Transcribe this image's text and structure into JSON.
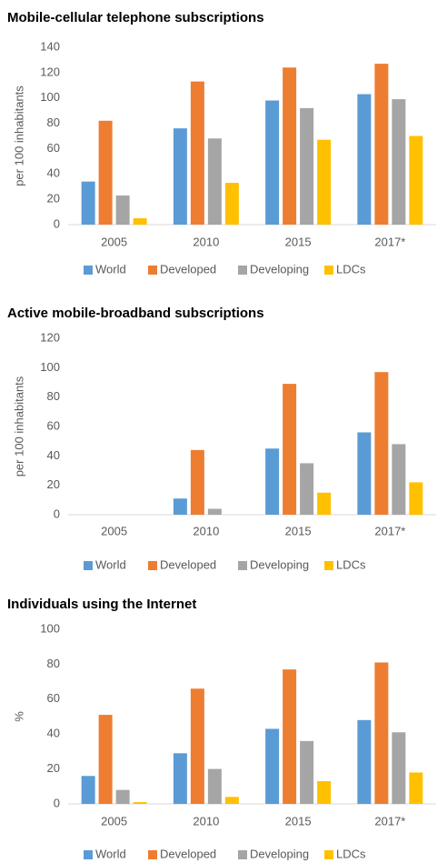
{
  "chart_data": [
    {
      "type": "bar",
      "title": "Mobile-cellular telephone subscriptions",
      "y_label": "per 100 inhabitants",
      "categories": [
        "2005",
        "2010",
        "2015",
        "2017*"
      ],
      "series": [
        {
          "name": "World",
          "color": "#5b9bd5",
          "values": [
            34,
            76,
            98,
            103
          ]
        },
        {
          "name": "Developed",
          "color": "#ed7d31",
          "values": [
            82,
            113,
            124,
            127
          ]
        },
        {
          "name": "Developing",
          "color": "#a5a5a5",
          "values": [
            23,
            68,
            92,
            99
          ]
        },
        {
          "name": "LDCs",
          "color": "#ffc000",
          "values": [
            5,
            33,
            67,
            70
          ]
        }
      ],
      "ylim": [
        0,
        140
      ],
      "yticks": [
        0,
        20,
        40,
        60,
        80,
        100,
        120,
        140
      ],
      "grid": false,
      "legend": "bottom"
    },
    {
      "type": "bar",
      "title": "Active mobile-broadband subscriptions",
      "y_label": "per 100 inhabitants",
      "categories": [
        "2005",
        "2010",
        "2015",
        "2017*"
      ],
      "series": [
        {
          "name": "World",
          "color": "#5b9bd5",
          "values": [
            null,
            11,
            45,
            56
          ]
        },
        {
          "name": "Developed",
          "color": "#ed7d31",
          "values": [
            null,
            44,
            89,
            97
          ]
        },
        {
          "name": "Developing",
          "color": "#a5a5a5",
          "values": [
            null,
            4,
            35,
            48
          ]
        },
        {
          "name": "LDCs",
          "color": "#ffc000",
          "values": [
            null,
            null,
            15,
            22
          ]
        }
      ],
      "ylim": [
        0,
        120
      ],
      "yticks": [
        0,
        20,
        40,
        60,
        80,
        100,
        120
      ],
      "grid": false,
      "legend": "bottom"
    },
    {
      "type": "bar",
      "title": "Individuals using the Internet",
      "y_label": "%",
      "categories": [
        "2005",
        "2010",
        "2015",
        "2017*"
      ],
      "series": [
        {
          "name": "World",
          "color": "#5b9bd5",
          "values": [
            16,
            29,
            43,
            48
          ]
        },
        {
          "name": "Developed",
          "color": "#ed7d31",
          "values": [
            51,
            66,
            77,
            81
          ]
        },
        {
          "name": "Developing",
          "color": "#a5a5a5",
          "values": [
            8,
            20,
            36,
            41
          ]
        },
        {
          "name": "LDCs",
          "color": "#ffc000",
          "values": [
            1,
            4,
            13,
            18
          ]
        }
      ],
      "ylim": [
        0,
        100
      ],
      "yticks": [
        0,
        20,
        40,
        60,
        80,
        100
      ],
      "grid": false,
      "legend": "bottom"
    }
  ]
}
